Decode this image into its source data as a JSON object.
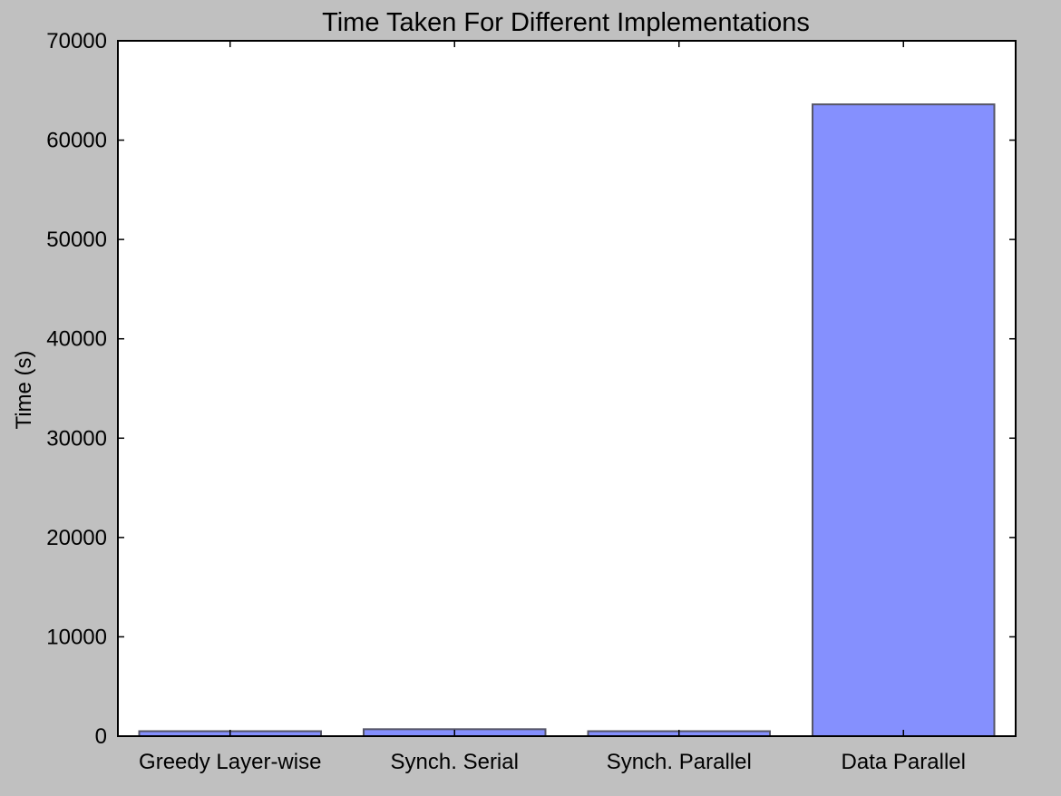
{
  "chart_data": {
    "type": "bar",
    "title": "Time Taken For Different Implementations",
    "xlabel": "",
    "ylabel": "Time (s)",
    "categories": [
      "Greedy Layer-wise",
      "Synch. Serial",
      "Synch. Parallel",
      "Data Parallel"
    ],
    "values": [
      500,
      700,
      500,
      63600
    ],
    "ylim": [
      0,
      70000
    ],
    "yticks": [
      0,
      10000,
      20000,
      30000,
      40000,
      50000,
      60000,
      70000
    ],
    "grid": false,
    "legend": "none",
    "colors": {
      "background": "#c0c0c0",
      "plot_area": "#ffffff",
      "bar_fill": "#8590fe",
      "bar_stroke": "#555566",
      "axis": "#000000"
    }
  }
}
